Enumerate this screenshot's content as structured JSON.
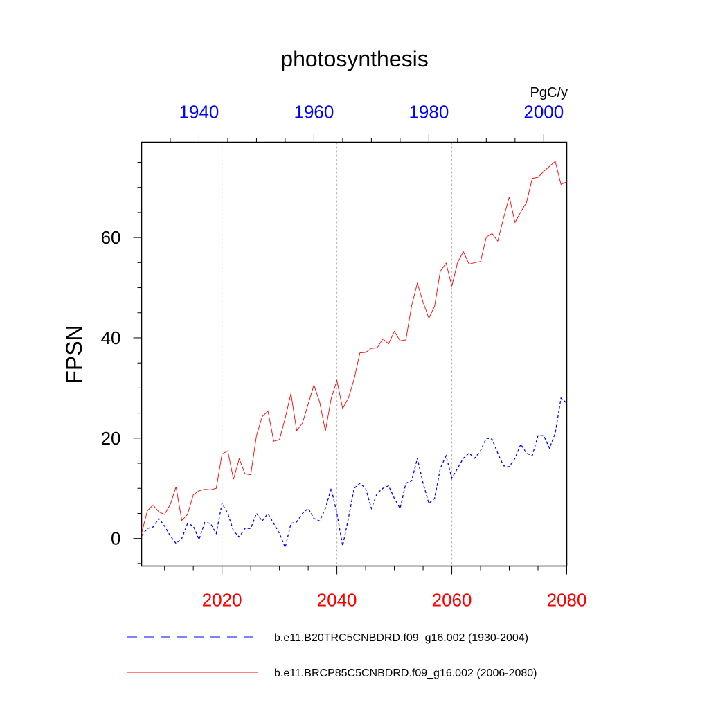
{
  "chart_data": {
    "type": "line",
    "title": "photosynthesis",
    "ylabel": "FPSN",
    "units": "PgC/y",
    "grid": "vertical dashed at bottom-axis major ticks",
    "bottom_axis": {
      "range": [
        2006,
        2080
      ],
      "ticks": [
        2020,
        2040,
        2060,
        2080
      ],
      "tick_labels": [
        "2020",
        "2040",
        "2060",
        "2080"
      ],
      "color": "#ff0000"
    },
    "top_axis": {
      "range": [
        1930,
        2004
      ],
      "ticks": [
        1940,
        1960,
        1980,
        2000
      ],
      "tick_labels": [
        "1940",
        "1960",
        "1980",
        "2000"
      ],
      "color": "#0000ff"
    },
    "y_axis": {
      "range": [
        -5.5,
        79
      ],
      "ticks": [
        0,
        20,
        40,
        60
      ],
      "tick_labels": [
        "0",
        "20",
        "40",
        "60"
      ]
    },
    "series": [
      {
        "name": "b.e11.B20TRC5CNBDRD.f09_g16.002 (1930-2004)",
        "axis": "top",
        "color": "#0000ff",
        "dash": "dashed",
        "x_start": 1930,
        "values": [
          0.5,
          2.0,
          2.3,
          4.0,
          2.5,
          0.5,
          -1.0,
          0.0,
          3.0,
          2.5,
          -0.2,
          3.2,
          3.0,
          1.0,
          7.0,
          5.0,
          1.5,
          0.3,
          2.0,
          2.0,
          5.0,
          3.5,
          5.0,
          3.0,
          1.0,
          -1.8,
          3.0,
          3.3,
          5.0,
          6.0,
          4.0,
          3.5,
          6.0,
          10.0,
          5.0,
          -1.5,
          4.0,
          10.0,
          11.0,
          10.0,
          6.0,
          9.0,
          10.0,
          10.5,
          8.0,
          6.0,
          11.0,
          11.5,
          16.0,
          11.0,
          7.0,
          8.0,
          14.0,
          16.5,
          12.0,
          14.0,
          16.0,
          17.0,
          16.0,
          17.5,
          20.0,
          19.8,
          17.0,
          14.5,
          14.3,
          16.0,
          18.8,
          17.0,
          16.5,
          20.5,
          20.5,
          18.0,
          21.0,
          28.0,
          27.0
        ]
      },
      {
        "name": "b.e11.BRCP85C5CNBDRD.f09_g16.002 (2006-2080)",
        "axis": "bottom",
        "color": "#ff0000",
        "dash": "solid",
        "x_start": 2006,
        "values": [
          1.0,
          5.5,
          6.7,
          5.3,
          4.8,
          6.8,
          10.3,
          3.6,
          4.8,
          8.7,
          9.5,
          9.8,
          9.7,
          10.0,
          16.8,
          17.5,
          11.8,
          15.9,
          12.9,
          12.7,
          20.5,
          24.3,
          25.4,
          19.4,
          19.7,
          24.0,
          28.9,
          21.5,
          23.0,
          26.8,
          30.6,
          27.2,
          21.4,
          27.9,
          31.5,
          25.9,
          28.0,
          31.8,
          37.0,
          37.1,
          37.9,
          38.0,
          39.8,
          38.8,
          41.3,
          39.4,
          39.6,
          46.4,
          50.9,
          47.1,
          43.9,
          46.3,
          53.3,
          54.9,
          50.3,
          55.0,
          57.2,
          54.7,
          55.0,
          55.2,
          60.1,
          60.8,
          59.3,
          63.9,
          68.1,
          63.0,
          65.1,
          67.0,
          71.8,
          72.0,
          73.2,
          74.2,
          75.2,
          70.6,
          71.1
        ]
      }
    ]
  }
}
